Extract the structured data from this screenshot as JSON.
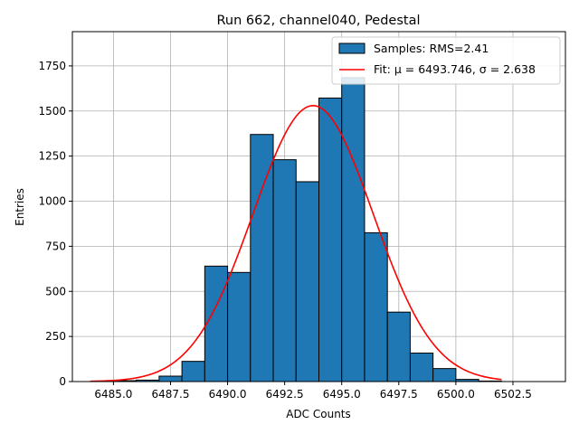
{
  "chart_data": {
    "type": "bar",
    "title": "Run 662, channel040, Pedestal",
    "xlabel": "ADC Counts",
    "ylabel": "Entries",
    "xlim": [
      6483.2,
      6504.8
    ],
    "ylim": [
      0,
      1940
    ],
    "grid": true,
    "legend_position": "top-right",
    "x_ticks": [
      6485.0,
      6487.5,
      6490.0,
      6492.5,
      6495.0,
      6497.5,
      6500.0,
      6502.5
    ],
    "x_tick_labels": [
      "6485.0",
      "6487.5",
      "6490.0",
      "6492.5",
      "6495.0",
      "6497.5",
      "6500.0",
      "6502.5"
    ],
    "y_ticks": [
      0,
      250,
      500,
      750,
      1000,
      1250,
      1500,
      1750
    ],
    "y_tick_labels": [
      "0",
      "250",
      "500",
      "750",
      "1000",
      "1250",
      "1500",
      "1750"
    ],
    "histogram": {
      "name": "Samples: RMS=2.41",
      "color": "#1f77b4",
      "edge_color": "#000000",
      "bin_edges": [
        6484,
        6485,
        6486,
        6487,
        6488,
        6489,
        6490,
        6491,
        6492,
        6493,
        6494,
        6495,
        6496,
        6497,
        6498,
        6499,
        6500,
        6501,
        6502,
        6503
      ],
      "counts": [
        2,
        5,
        8,
        30,
        112,
        640,
        605,
        1370,
        1230,
        1108,
        1572,
        1685,
        825,
        385,
        158,
        72,
        12,
        3,
        0
      ]
    },
    "fit": {
      "name": "Fit: μ = 6493.746, σ = 2.638",
      "color": "#ff0000",
      "type": "gaussian",
      "mu": 6493.746,
      "sigma": 2.638,
      "amplitude": 1530,
      "x_range": [
        6484,
        6502
      ]
    }
  }
}
